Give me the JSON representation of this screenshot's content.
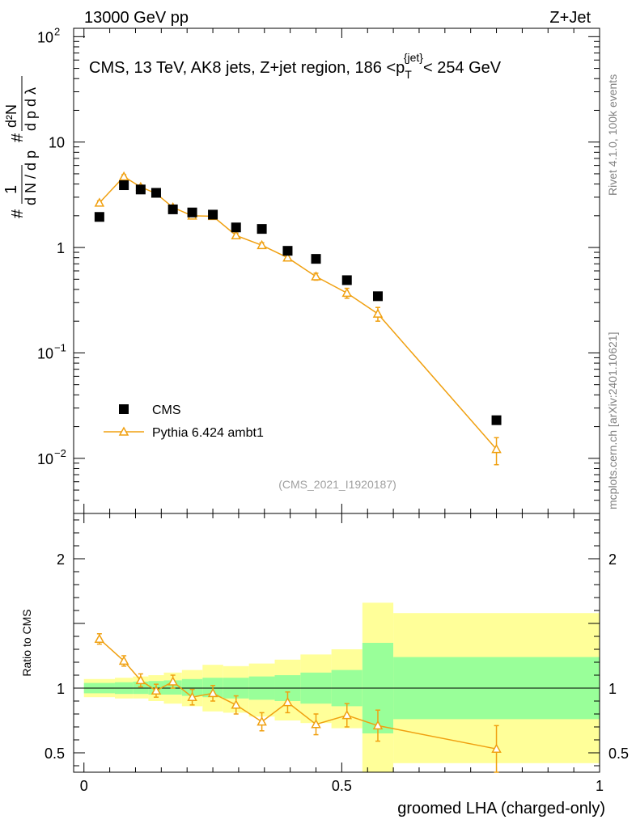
{
  "header": {
    "left": "13000 GeV pp",
    "right": "Z+Jet"
  },
  "side_labels": {
    "rivet": "Rivet 4.1.0,  100k events",
    "mcplots": "mcplots.cern.ch [arXiv:2401.10621]"
  },
  "chart_data": {
    "type": "scatter",
    "title": "CMS, 13 TeV, AK8 jets, Z+jet region, 186 <p_T^{jet}< 254 GeV",
    "title_parts": {
      "before": "CMS, 13 TeV, AK8 jets, Z+jet region, 186 <p",
      "sub": "T",
      "sup": "{jet}",
      "after": "< 254 GeV"
    },
    "watermark": "(CMS_2021_I1920187)",
    "xlabel": "groomed LHA (charged-only)",
    "ylabel_main": "1/dN/dp_T  d²N/dp_T dλ",
    "ylabel_ratio": "Ratio to CMS",
    "xlim": [
      -0.02,
      1.0
    ],
    "ylim_main": [
      0.003,
      120
    ],
    "yscale_main": "log",
    "ylim_ratio": [
      0.35,
      2.35
    ],
    "x_ticks": [
      "0",
      "0.5",
      "1"
    ],
    "y_ticks_main": [
      {
        "value": 0.01,
        "label": "10",
        "exp": "−2"
      },
      {
        "value": 0.1,
        "label": "10",
        "exp": "−1"
      },
      {
        "value": 1,
        "label": "1",
        "exp": ""
      },
      {
        "value": 10,
        "label": "10",
        "exp": ""
      },
      {
        "value": 100,
        "label": "10",
        "exp": "2"
      }
    ],
    "y_ticks_ratio": [
      "0.5",
      "1",
      "2"
    ],
    "legend_position": "bottom-left",
    "legend": [
      "CMS",
      "Pythia 6.424 ambt1"
    ],
    "bins": [
      0.0,
      0.06,
      0.095,
      0.125,
      0.155,
      0.19,
      0.23,
      0.27,
      0.32,
      0.37,
      0.42,
      0.48,
      0.54,
      0.6,
      1.0
    ],
    "series": [
      {
        "name": "CMS",
        "color": "#000000",
        "marker": "square",
        "x": [
          0.03,
          0.0775,
          0.11,
          0.14,
          0.1725,
          0.21,
          0.25,
          0.295,
          0.345,
          0.395,
          0.45,
          0.51,
          0.57,
          0.8
        ],
        "y": [
          1.95,
          3.9,
          3.55,
          3.3,
          2.3,
          2.15,
          2.05,
          1.55,
          1.5,
          0.93,
          0.78,
          0.49,
          0.345,
          0.023
        ]
      },
      {
        "name": "Pythia 6.424 ambt1",
        "color": "#f0a010",
        "marker": "open-triangle",
        "x": [
          0.03,
          0.0775,
          0.11,
          0.14,
          0.1725,
          0.21,
          0.25,
          0.295,
          0.345,
          0.395,
          0.45,
          0.51,
          0.57,
          0.8
        ],
        "y": [
          2.65,
          4.7,
          3.75,
          3.25,
          2.4,
          2.0,
          1.98,
          1.3,
          1.05,
          0.8,
          0.53,
          0.37,
          0.235,
          0.0122
        ],
        "y_err": [
          0.12,
          0.2,
          0.15,
          0.13,
          0.1,
          0.09,
          0.09,
          0.07,
          0.06,
          0.05,
          0.04,
          0.04,
          0.035,
          0.0035
        ],
        "ratio": [
          1.38,
          1.21,
          1.06,
          0.98,
          1.05,
          0.93,
          0.96,
          0.87,
          0.74,
          0.89,
          0.72,
          0.79,
          0.71,
          0.53
        ],
        "ratio_err": [
          0.04,
          0.04,
          0.05,
          0.05,
          0.05,
          0.06,
          0.06,
          0.07,
          0.07,
          0.08,
          0.08,
          0.09,
          0.12,
          0.18
        ]
      }
    ],
    "ratio_bands": {
      "stat_color": "#99ff99",
      "total_color": "#ffff99",
      "stat_lo": [
        0.96,
        0.955,
        0.955,
        0.95,
        0.95,
        0.94,
        0.93,
        0.92,
        0.91,
        0.9,
        0.88,
        0.86,
        0.65,
        0.76
      ],
      "stat_hi": [
        1.04,
        1.045,
        1.05,
        1.055,
        1.06,
        1.07,
        1.08,
        1.08,
        1.09,
        1.1,
        1.12,
        1.14,
        1.35,
        1.24
      ],
      "total_lo": [
        0.93,
        0.92,
        0.92,
        0.9,
        0.88,
        0.86,
        0.82,
        0.81,
        0.78,
        0.75,
        0.73,
        0.69,
        0.34,
        0.42
      ],
      "total_hi": [
        1.07,
        1.08,
        1.09,
        1.1,
        1.12,
        1.14,
        1.18,
        1.17,
        1.19,
        1.22,
        1.26,
        1.3,
        1.66,
        1.58
      ]
    }
  }
}
